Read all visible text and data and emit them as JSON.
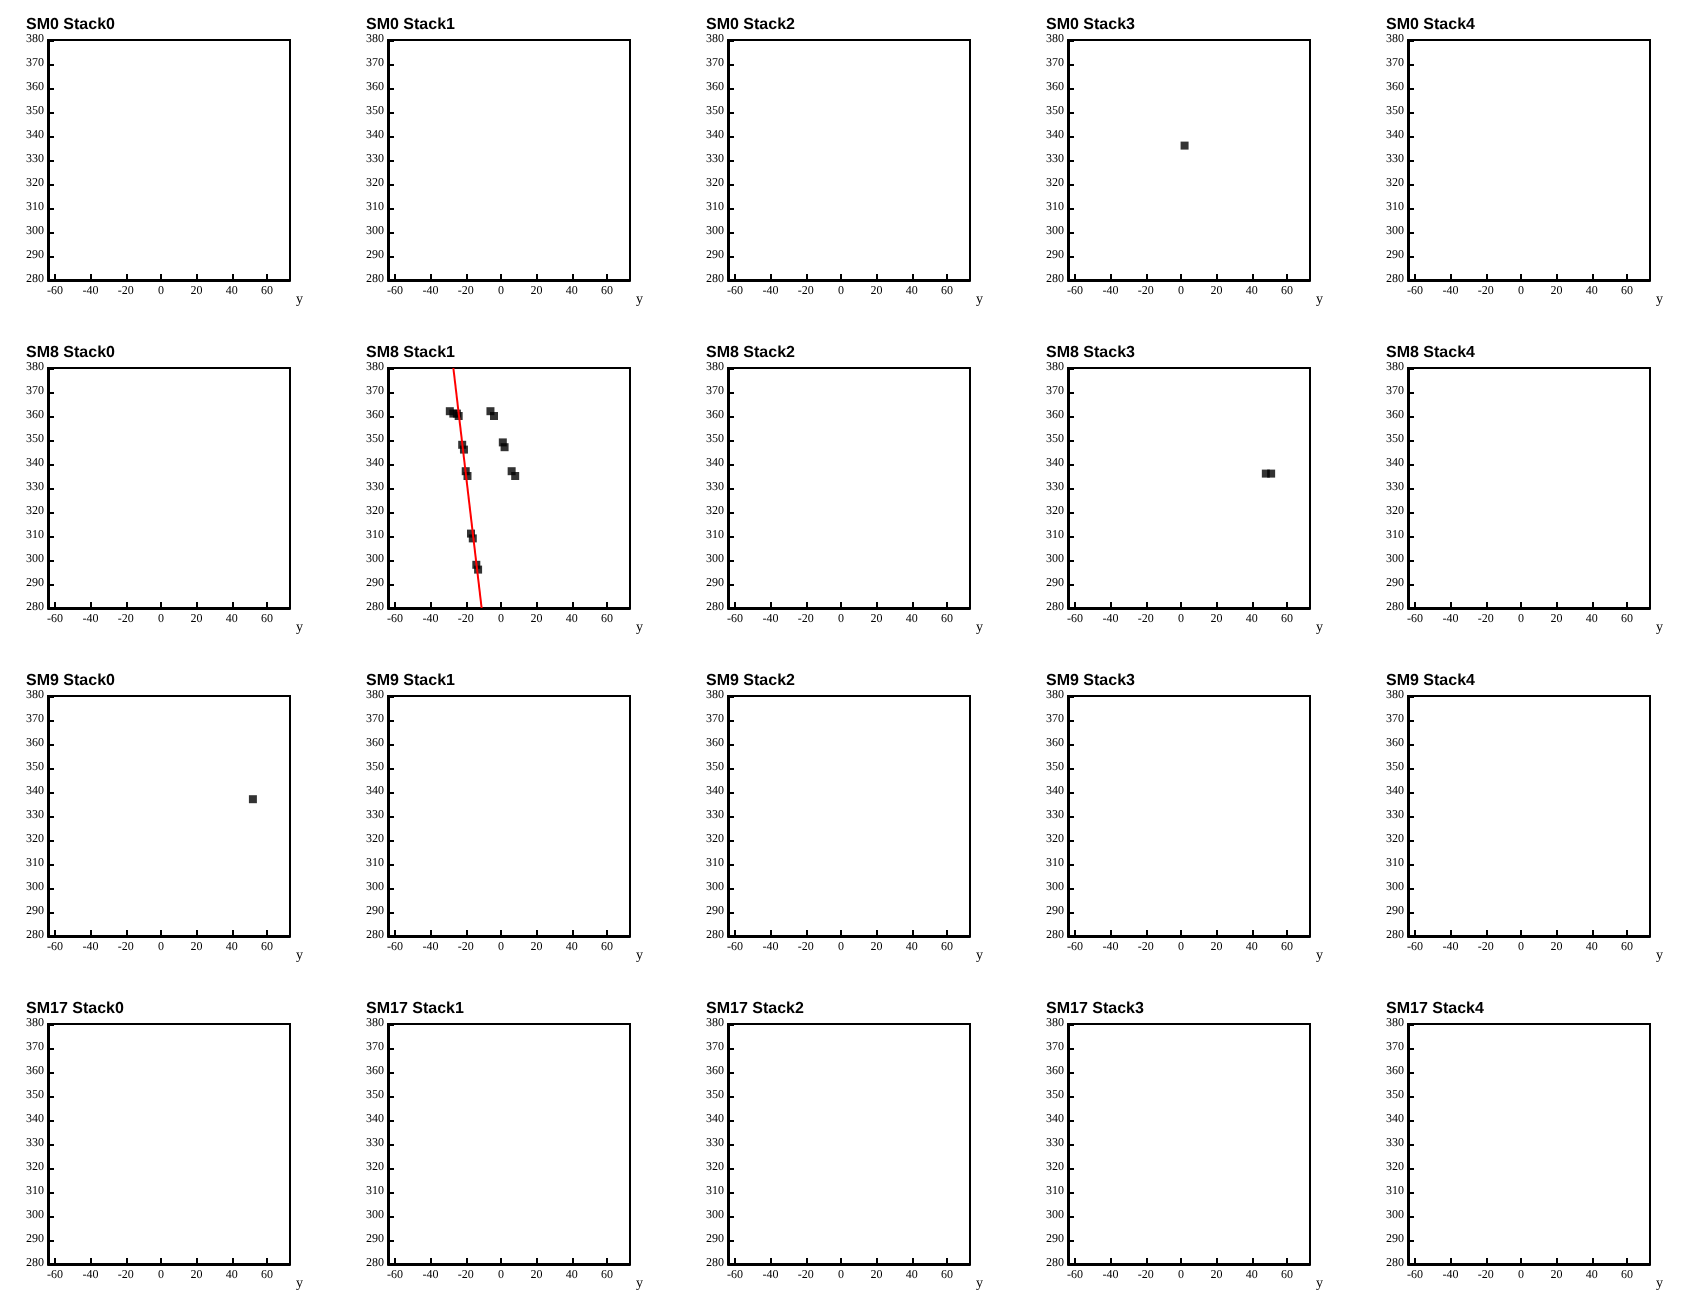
{
  "chart_data": [
    {
      "type": "scatter",
      "title": "SM0 Stack0",
      "xlabel": "y",
      "xlim": [
        -64,
        73
      ],
      "xticks": [
        -60,
        -40,
        -20,
        0,
        20,
        40,
        60
      ],
      "ylim": [
        280,
        380
      ],
      "yticks": [
        280,
        290,
        300,
        310,
        320,
        330,
        340,
        350,
        360,
        370,
        380
      ]
    },
    {
      "type": "scatter",
      "title": "SM0 Stack1",
      "xlabel": "y",
      "xlim": [
        -64,
        73
      ],
      "xticks": [
        -60,
        -40,
        -20,
        0,
        20,
        40,
        60
      ],
      "ylim": [
        280,
        380
      ],
      "yticks": [
        280,
        290,
        300,
        310,
        320,
        330,
        340,
        350,
        360,
        370,
        380
      ]
    },
    {
      "type": "scatter",
      "title": "SM0 Stack2",
      "xlabel": "y",
      "xlim": [
        -64,
        73
      ],
      "xticks": [
        -60,
        -40,
        -20,
        0,
        20,
        40,
        60
      ],
      "ylim": [
        280,
        380
      ],
      "yticks": [
        280,
        290,
        300,
        310,
        320,
        330,
        340,
        350,
        360,
        370,
        380
      ]
    },
    {
      "type": "scatter",
      "title": "SM0 Stack3",
      "xlabel": "y",
      "xlim": [
        -64,
        73
      ],
      "xticks": [
        -60,
        -40,
        -20,
        0,
        20,
        40,
        60
      ],
      "ylim": [
        280,
        380
      ],
      "yticks": [
        280,
        290,
        300,
        310,
        320,
        330,
        340,
        350,
        360,
        370,
        380
      ],
      "marker": "square",
      "series": [
        {
          "color": "#000000",
          "x": [
            2
          ],
          "values": [
            336
          ]
        }
      ]
    },
    {
      "type": "scatter",
      "title": "SM0 Stack4",
      "xlabel": "y",
      "xlim": [
        -64,
        73
      ],
      "xticks": [
        -60,
        -40,
        -20,
        0,
        20,
        40,
        60
      ],
      "ylim": [
        280,
        380
      ],
      "yticks": [
        280,
        290,
        300,
        310,
        320,
        330,
        340,
        350,
        360,
        370,
        380
      ]
    },
    {
      "type": "scatter",
      "title": "SM8 Stack0",
      "xlabel": "y",
      "xlim": [
        -64,
        73
      ],
      "xticks": [
        -60,
        -40,
        -20,
        0,
        20,
        40,
        60
      ],
      "ylim": [
        280,
        380
      ],
      "yticks": [
        280,
        290,
        300,
        310,
        320,
        330,
        340,
        350,
        360,
        370,
        380
      ]
    },
    {
      "type": "scatter",
      "title": "SM8 Stack1",
      "xlabel": "y",
      "xlim": [
        -64,
        73
      ],
      "xticks": [
        -60,
        -40,
        -20,
        0,
        20,
        40,
        60
      ],
      "ylim": [
        280,
        380
      ],
      "yticks": [
        280,
        290,
        300,
        310,
        320,
        330,
        340,
        350,
        360,
        370,
        380
      ],
      "series": [
        {
          "color": "#000000",
          "marker": "square",
          "x": [
            -29,
            -27,
            -25,
            -24,
            -22,
            -21,
            -20,
            -19,
            -17,
            -16,
            -14,
            -13,
            -6,
            -4,
            1,
            2,
            6,
            8
          ],
          "values": [
            362,
            361,
            361,
            360,
            348,
            346,
            337,
            335,
            311,
            309,
            298,
            296,
            362,
            360,
            349,
            347,
            337,
            335
          ]
        },
        {
          "type": "line",
          "color": "#ff0000",
          "x": [
            -27,
            -11
          ],
          "values": [
            380,
            280
          ]
        }
      ]
    },
    {
      "type": "scatter",
      "title": "SM8 Stack2",
      "xlabel": "y",
      "xlim": [
        -64,
        73
      ],
      "xticks": [
        -60,
        -40,
        -20,
        0,
        20,
        40,
        60
      ],
      "ylim": [
        280,
        380
      ],
      "yticks": [
        280,
        290,
        300,
        310,
        320,
        330,
        340,
        350,
        360,
        370,
        380
      ]
    },
    {
      "type": "scatter",
      "title": "SM8 Stack3",
      "xlabel": "y",
      "xlim": [
        -64,
        73
      ],
      "xticks": [
        -60,
        -40,
        -20,
        0,
        20,
        40,
        60
      ],
      "ylim": [
        280,
        380
      ],
      "yticks": [
        280,
        290,
        300,
        310,
        320,
        330,
        340,
        350,
        360,
        370,
        380
      ],
      "marker": "square",
      "series": [
        {
          "color": "#000000",
          "x": [
            48,
            51
          ],
          "values": [
            336,
            336
          ]
        }
      ]
    },
    {
      "type": "scatter",
      "title": "SM8 Stack4",
      "xlabel": "y",
      "xlim": [
        -64,
        73
      ],
      "xticks": [
        -60,
        -40,
        -20,
        0,
        20,
        40,
        60
      ],
      "ylim": [
        280,
        380
      ],
      "yticks": [
        280,
        290,
        300,
        310,
        320,
        330,
        340,
        350,
        360,
        370,
        380
      ]
    },
    {
      "type": "scatter",
      "title": "SM9 Stack0",
      "xlabel": "y",
      "xlim": [
        -64,
        73
      ],
      "xticks": [
        -60,
        -40,
        -20,
        0,
        20,
        40,
        60
      ],
      "ylim": [
        280,
        380
      ],
      "yticks": [
        280,
        290,
        300,
        310,
        320,
        330,
        340,
        350,
        360,
        370,
        380
      ],
      "marker": "square",
      "series": [
        {
          "color": "#000000",
          "x": [
            52
          ],
          "values": [
            337
          ]
        }
      ]
    },
    {
      "type": "scatter",
      "title": "SM9 Stack1",
      "xlabel": "y",
      "xlim": [
        -64,
        73
      ],
      "xticks": [
        -60,
        -40,
        -20,
        0,
        20,
        40,
        60
      ],
      "ylim": [
        280,
        380
      ],
      "yticks": [
        280,
        290,
        300,
        310,
        320,
        330,
        340,
        350,
        360,
        370,
        380
      ]
    },
    {
      "type": "scatter",
      "title": "SM9 Stack2",
      "xlabel": "y",
      "xlim": [
        -64,
        73
      ],
      "xticks": [
        -60,
        -40,
        -20,
        0,
        20,
        40,
        60
      ],
      "ylim": [
        280,
        380
      ],
      "yticks": [
        280,
        290,
        300,
        310,
        320,
        330,
        340,
        350,
        360,
        370,
        380
      ]
    },
    {
      "type": "scatter",
      "title": "SM9 Stack3",
      "xlabel": "y",
      "xlim": [
        -64,
        73
      ],
      "xticks": [
        -60,
        -40,
        -20,
        0,
        20,
        40,
        60
      ],
      "ylim": [
        280,
        380
      ],
      "yticks": [
        280,
        290,
        300,
        310,
        320,
        330,
        340,
        350,
        360,
        370,
        380
      ]
    },
    {
      "type": "scatter",
      "title": "SM9 Stack4",
      "xlabel": "y",
      "xlim": [
        -64,
        73
      ],
      "xticks": [
        -60,
        -40,
        -20,
        0,
        20,
        40,
        60
      ],
      "ylim": [
        280,
        380
      ],
      "yticks": [
        280,
        290,
        300,
        310,
        320,
        330,
        340,
        350,
        360,
        370,
        380
      ]
    },
    {
      "type": "scatter",
      "title": "SM17 Stack0",
      "xlabel": "y",
      "xlim": [
        -64,
        73
      ],
      "xticks": [
        -60,
        -40,
        -20,
        0,
        20,
        40,
        60
      ],
      "ylim": [
        280,
        380
      ],
      "yticks": [
        280,
        290,
        300,
        310,
        320,
        330,
        340,
        350,
        360,
        370,
        380
      ]
    },
    {
      "type": "scatter",
      "title": "SM17 Stack1",
      "xlabel": "y",
      "xlim": [
        -64,
        73
      ],
      "xticks": [
        -60,
        -40,
        -20,
        0,
        20,
        40,
        60
      ],
      "ylim": [
        280,
        380
      ],
      "yticks": [
        280,
        290,
        300,
        310,
        320,
        330,
        340,
        350,
        360,
        370,
        380
      ]
    },
    {
      "type": "scatter",
      "title": "SM17 Stack2",
      "xlabel": "y",
      "xlim": [
        -64,
        73
      ],
      "xticks": [
        -60,
        -40,
        -20,
        0,
        20,
        40,
        60
      ],
      "ylim": [
        280,
        380
      ],
      "yticks": [
        280,
        290,
        300,
        310,
        320,
        330,
        340,
        350,
        360,
        370,
        380
      ]
    },
    {
      "type": "scatter",
      "title": "SM17 Stack3",
      "xlabel": "y",
      "xlim": [
        -64,
        73
      ],
      "xticks": [
        -60,
        -40,
        -20,
        0,
        20,
        40,
        60
      ],
      "ylim": [
        280,
        380
      ],
      "yticks": [
        280,
        290,
        300,
        310,
        320,
        330,
        340,
        350,
        360,
        370,
        380
      ]
    },
    {
      "type": "scatter",
      "title": "SM17 Stack4",
      "xlabel": "y",
      "xlim": [
        -64,
        73
      ],
      "xticks": [
        -60,
        -40,
        -20,
        0,
        20,
        40,
        60
      ],
      "ylim": [
        280,
        380
      ],
      "yticks": [
        280,
        290,
        300,
        310,
        320,
        330,
        340,
        350,
        360,
        370,
        380
      ]
    }
  ]
}
